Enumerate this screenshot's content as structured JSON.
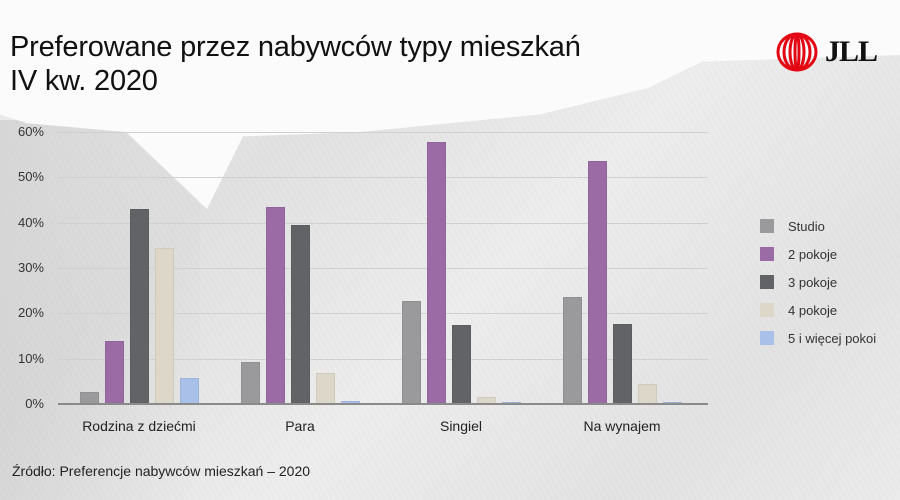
{
  "title": {
    "line1": "Preferowane przez nabywców typy mieszkań",
    "line2": "IV kw. 2020"
  },
  "logo": {
    "text": "JLL",
    "icon": "jll-helix-icon",
    "color": "#e30613"
  },
  "source": "Źródło: Preferencje nabywców mieszkań – 2020",
  "colors": {
    "Studio": "#9a9a9c",
    "2 pokoje": "#9b6ba6",
    "3 pokoje": "#626366",
    "4 pokoje": "#ddd7c9",
    "5 i więcej pokoi": "#a9c0e8"
  },
  "chart_data": {
    "type": "bar",
    "title": "Preferowane przez nabywców typy mieszkań IV kw. 2020",
    "xlabel": "",
    "ylabel": "",
    "categories": [
      "Rodzina z dziećmi",
      "Para",
      "Singiel",
      "Na wynajem"
    ],
    "series": [
      {
        "name": "Studio",
        "values": [
          2.6,
          9.3,
          22.7,
          23.6
        ]
      },
      {
        "name": "2 pokoje",
        "values": [
          14.0,
          43.5,
          57.8,
          53.6
        ]
      },
      {
        "name": "3 pokoje",
        "values": [
          43.0,
          39.5,
          17.4,
          17.7
        ]
      },
      {
        "name": "4 pokoje",
        "values": [
          34.4,
          6.8,
          1.6,
          4.4
        ]
      },
      {
        "name": "5 i więcej pokoi",
        "values": [
          5.8,
          0.7,
          0.2,
          0.4
        ]
      }
    ],
    "yticks": [
      "0%",
      "10%",
      "20%",
      "30%",
      "40%",
      "50%",
      "60%"
    ],
    "ylim": [
      0,
      60
    ],
    "grid": true,
    "legend_position": "right"
  }
}
